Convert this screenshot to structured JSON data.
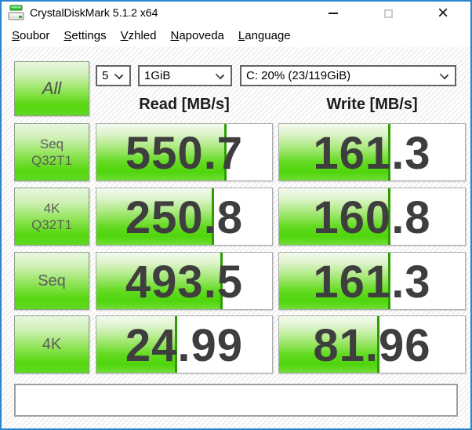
{
  "window": {
    "title": "CrystalDiskMark 5.1.2 x64"
  },
  "menu": {
    "items": [
      "Soubor",
      "Settings",
      "Vzhled",
      "Napoveda",
      "Language"
    ]
  },
  "toolbar": {
    "all_label": "All",
    "test_count": "5",
    "test_size": "1GiB",
    "drive": "C: 20% (23/119GiB)"
  },
  "headers": {
    "read": "Read [MB/s]",
    "write": "Write [MB/s]"
  },
  "results": {
    "rows": [
      {
        "label_line1": "Seq",
        "label_line2": "Q32T1",
        "read": "550.7",
        "write": "161.3",
        "read_fill": 74,
        "write_fill": 60
      },
      {
        "label_line1": "4K",
        "label_line2": "Q32T1",
        "read": "250.8",
        "write": "160.8",
        "read_fill": 67,
        "write_fill": 60
      },
      {
        "label_line1": "Seq",
        "label_line2": "",
        "read": "493.5",
        "write": "161.3",
        "read_fill": 72,
        "write_fill": 60
      },
      {
        "label_line1": "4K",
        "label_line2": "",
        "read": "24.99",
        "write": "81.96",
        "read_fill": 46,
        "write_fill": 54
      }
    ]
  },
  "comment": {
    "value": ""
  },
  "colors": {
    "accent_green": "#52d611",
    "bar_edge_green": "#2e9d04",
    "window_border_blue": "#2a85d0"
  }
}
